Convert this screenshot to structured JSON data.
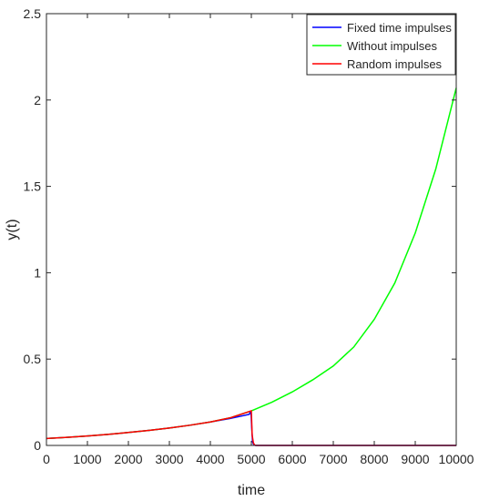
{
  "chart_data": {
    "type": "line",
    "title": "",
    "xlabel": "time",
    "ylabel": "y(t)",
    "xlim": [
      0,
      10000
    ],
    "ylim": [
      0,
      2.5
    ],
    "xticks": [
      0,
      1000,
      2000,
      3000,
      4000,
      5000,
      6000,
      7000,
      8000,
      9000,
      10000
    ],
    "xtick_labels": [
      "0",
      "1000",
      "2000",
      "3000",
      "4000",
      "5000",
      "6000",
      "7000",
      "8000",
      "9000",
      "10000"
    ],
    "yticks": [
      0,
      0.5,
      1,
      1.5,
      2,
      2.5
    ],
    "ytick_labels": [
      "0",
      "0.5",
      "1",
      "1.5",
      "2",
      "2.5"
    ],
    "grid": false,
    "legend_position": "top-right",
    "series": [
      {
        "name": "Fixed time impulses",
        "color": "#0000ff",
        "x": [
          0,
          500,
          1000,
          1500,
          2000,
          2500,
          3000,
          3500,
          4000,
          4500,
          4950,
          4990,
          5010,
          5030,
          5060,
          5100,
          6000,
          7000,
          8000,
          9000,
          10000
        ],
        "y": [
          0.04,
          0.047,
          0.055,
          0.064,
          0.075,
          0.087,
          0.101,
          0.117,
          0.136,
          0.157,
          0.18,
          0.2,
          0.1,
          0.02,
          0.003,
          0.0,
          0.0,
          0.0,
          0.0,
          0.0,
          0.0
        ]
      },
      {
        "name": "Without impulses",
        "color": "#00ff00",
        "x": [
          0,
          500,
          1000,
          1500,
          2000,
          2500,
          3000,
          3500,
          4000,
          4500,
          5000,
          5500,
          6000,
          6500,
          7000,
          7500,
          8000,
          8500,
          9000,
          9500,
          10000
        ],
        "y": [
          0.04,
          0.047,
          0.055,
          0.064,
          0.075,
          0.087,
          0.101,
          0.117,
          0.136,
          0.161,
          0.2,
          0.25,
          0.31,
          0.38,
          0.46,
          0.57,
          0.73,
          0.94,
          1.23,
          1.6,
          2.07
        ]
      },
      {
        "name": "Random impulses",
        "color": "#ff0000",
        "x": [
          0,
          500,
          1000,
          1500,
          2000,
          2500,
          3000,
          3500,
          4000,
          4500,
          5000,
          5020,
          5050,
          5080,
          5120,
          6000,
          7000,
          8000,
          9000,
          10000
        ],
        "y": [
          0.04,
          0.047,
          0.055,
          0.064,
          0.075,
          0.087,
          0.101,
          0.117,
          0.136,
          0.161,
          0.2,
          0.06,
          0.015,
          0.002,
          0.0,
          0.0,
          0.0,
          0.0,
          0.0,
          0.0
        ]
      }
    ]
  }
}
